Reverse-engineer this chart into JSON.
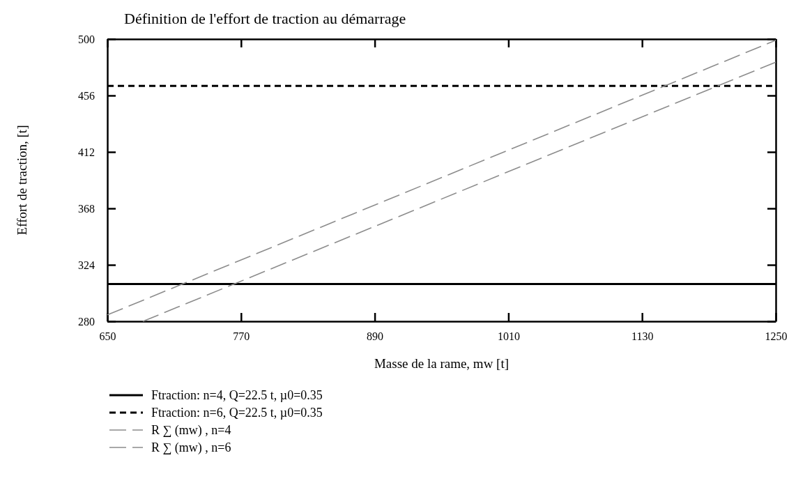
{
  "chart_data": {
    "type": "line",
    "title": "Définition de l'effort de traction au démarrage",
    "xlabel": "Masse de la rame, mw [t]",
    "ylabel": "Effort de traction, [t]",
    "xlim": [
      650,
      1250
    ],
    "xticks": [
      650,
      770,
      890,
      1010,
      1130,
      1250
    ],
    "ylim": [
      280,
      500
    ],
    "yticks": [
      280,
      324,
      368,
      412,
      456,
      500
    ],
    "grid": false,
    "legend": "bottom",
    "marker": "none",
    "series": [
      {
        "name": "Ftraction: n=4, Q=22.5 t, µ0=0.35",
        "color": "#000000",
        "line_style": "solid",
        "x": [
          650,
          1250
        ],
        "values": [
          309,
          309
        ]
      },
      {
        "name": "Ftraction: n=6, Q=22.5 t, µ0=0.35",
        "color": "#000000",
        "line_style": "dashed",
        "x": [
          650,
          1250
        ],
        "values": [
          463.5,
          463.5
        ]
      },
      {
        "name": "R ∑ (mw) , n=4",
        "color": "#8c8c8c",
        "line_style": "dashed",
        "x": [
          682,
          1250
        ],
        "values": [
          280,
          482
        ]
      },
      {
        "name": "R ∑ (mw) , n=6",
        "color": "#8c8c8c",
        "line_style": "dashed",
        "x": [
          650,
          1250
        ],
        "values": [
          285,
          499
        ]
      }
    ]
  }
}
